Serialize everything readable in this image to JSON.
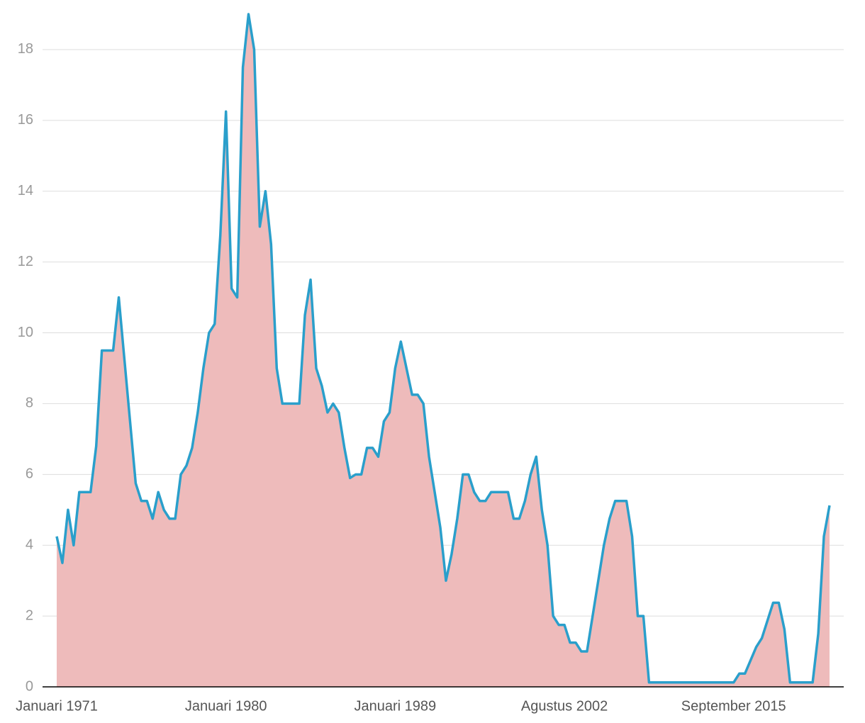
{
  "chart_data": {
    "type": "area",
    "categories": [
      "Januari 1971",
      null,
      null,
      null,
      null,
      null,
      null,
      null,
      null,
      null,
      null,
      null,
      null,
      null,
      null,
      null,
      null,
      null,
      null,
      null,
      null,
      null,
      null,
      null,
      null,
      null,
      null,
      null,
      null,
      null,
      "Januari 1980",
      null,
      null,
      null,
      null,
      null,
      null,
      null,
      null,
      null,
      null,
      null,
      null,
      null,
      null,
      null,
      null,
      null,
      null,
      null,
      null,
      null,
      null,
      null,
      null,
      null,
      null,
      null,
      null,
      null,
      "Januari 1989",
      null,
      null,
      null,
      null,
      null,
      null,
      null,
      null,
      null,
      null,
      null,
      null,
      null,
      null,
      null,
      null,
      null,
      null,
      null,
      null,
      null,
      null,
      null,
      null,
      null,
      null,
      null,
      null,
      null,
      "Agustus 2002",
      null,
      null,
      null,
      null,
      null,
      null,
      null,
      null,
      null,
      null,
      null,
      null,
      null,
      null,
      null,
      null,
      null,
      null,
      null,
      null,
      null,
      null,
      null,
      null,
      null,
      null,
      null,
      null,
      null,
      "September 2015",
      null,
      null,
      null,
      null,
      null,
      null,
      null,
      null,
      null,
      null,
      null,
      null,
      null,
      null,
      null,
      null,
      null
    ],
    "series": [
      {
        "color": "#2a9fcb",
        "fill": "#eebbbb",
        "values": [
          4.25,
          3.5,
          5.0,
          4.0,
          5.5,
          5.5,
          5.5,
          6.8,
          9.5,
          9.5,
          9.5,
          11.0,
          9.25,
          7.5,
          5.75,
          5.25,
          5.25,
          4.75,
          5.5,
          5.0,
          4.75,
          4.75,
          6.0,
          6.25,
          6.75,
          7.75,
          9.0,
          10.0,
          10.25,
          12.75,
          16.25,
          11.25,
          11.0,
          17.5,
          19.0,
          18.0,
          13.0,
          14.0,
          12.5,
          9.0,
          8.0,
          8.0,
          8.0,
          8.0,
          10.5,
          11.5,
          9.0,
          8.5,
          7.75,
          8.0,
          7.75,
          6.75,
          5.9,
          6.0,
          6.0,
          6.75,
          6.75,
          6.5,
          7.5,
          7.75,
          9.0,
          9.75,
          9.0,
          8.25,
          8.25,
          8.0,
          6.5,
          5.5,
          4.5,
          3.0,
          3.75,
          4.75,
          6.0,
          6.0,
          5.5,
          5.25,
          5.25,
          5.5,
          5.5,
          5.5,
          5.5,
          4.75,
          4.75,
          5.25,
          6.0,
          6.5,
          5.0,
          4.0,
          2.0,
          1.75,
          1.75,
          1.25,
          1.25,
          1.0,
          1.0,
          2.0,
          3.0,
          4.0,
          4.75,
          5.25,
          5.25,
          5.25,
          4.25,
          2.0,
          2.0,
          0.125,
          0.125,
          0.125,
          0.125,
          0.125,
          0.125,
          0.125,
          0.125,
          0.125,
          0.125,
          0.125,
          0.125,
          0.125,
          0.125,
          0.125,
          0.125,
          0.375,
          0.375,
          0.75,
          1.125,
          1.375,
          1.875,
          2.375,
          2.375,
          1.625,
          0.125,
          0.125,
          0.125,
          0.125,
          0.125,
          1.5,
          4.25,
          5.125
        ]
      }
    ],
    "ylim": [
      0,
      19
    ],
    "yticks": [
      0,
      2,
      4,
      6,
      8,
      10,
      12,
      14,
      16,
      18
    ],
    "grid": true
  }
}
